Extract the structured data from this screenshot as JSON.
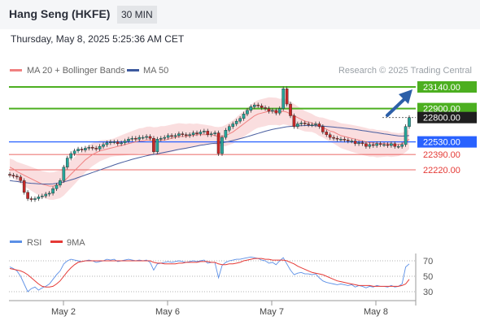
{
  "header": {
    "title": "Hang Seng (HKFE)",
    "timeframe": "30 MIN"
  },
  "datetime": "Thursday, May 8, 2025 5:25:36 AM CET",
  "legend": {
    "ma20": "MA 20 + Bollinger Bands",
    "ma50": "MA 50",
    "rsi": "RSI",
    "ma9": "9MA"
  },
  "watermark": "Research © 2025 Trading Central",
  "colors": {
    "resistance": "#4caf20",
    "pivot": "#2962ff",
    "support": "#e53935",
    "ma20": "#f08080",
    "ma50": "#4a5fa0",
    "band": "#fadadb",
    "up": "#26a69a",
    "down": "#c62828",
    "rsi": "#5b8fe6",
    "rsi_ma": "#e53935"
  },
  "chart_data": [
    {
      "type": "candlestick",
      "levels": [
        {
          "value": 23140.0,
          "label": "23140.00",
          "kind": "resistance"
        },
        {
          "value": 22900.0,
          "label": "22900.00",
          "kind": "resistance"
        },
        {
          "value": 22800.0,
          "label": "22800.00",
          "kind": "last"
        },
        {
          "value": 22530.0,
          "label": "22530.00",
          "kind": "pivot"
        },
        {
          "value": 22390.0,
          "label": "22390.00",
          "kind": "support"
        },
        {
          "value": 22220.0,
          "label": "22220.00",
          "kind": "support"
        }
      ],
      "x_ticks": [
        "May 2",
        "May 6",
        "May 7",
        "May 8"
      ],
      "y_range": [
        21700,
        23250
      ],
      "close": [
        22160,
        22150,
        22140,
        22100,
        21970,
        21900,
        21890,
        21900,
        21920,
        21930,
        21950,
        21960,
        22010,
        22050,
        22100,
        22250,
        22350,
        22400,
        22430,
        22450,
        22440,
        22460,
        22470,
        22460,
        22450,
        22480,
        22500,
        22520,
        22530,
        22530,
        22510,
        22520,
        22540,
        22560,
        22570,
        22560,
        22580,
        22580,
        22590,
        22570,
        22420,
        22560,
        22570,
        22580,
        22600,
        22590,
        22600,
        22620,
        22610,
        22600,
        22610,
        22630,
        22620,
        22640,
        22650,
        22610,
        22620,
        22630,
        22400,
        22580,
        22660,
        22700,
        22730,
        22760,
        22790,
        22840,
        22880,
        22920,
        22940,
        22930,
        22910,
        22900,
        22870,
        22880,
        22850,
        22900,
        23120,
        22950,
        22820,
        22700,
        22730,
        22740,
        22730,
        22720,
        22720,
        22730,
        22700,
        22640,
        22610,
        22580,
        22570,
        22560,
        22560,
        22550,
        22540,
        22540,
        22510,
        22520,
        22510,
        22480,
        22500,
        22490,
        22510,
        22500,
        22500,
        22490,
        22510,
        22480,
        22480,
        22500,
        22700,
        22800
      ],
      "ma20": [
        22250,
        22230,
        22200,
        22180,
        22160,
        22140,
        22120,
        22100,
        22080,
        22060,
        22050,
        22040,
        22040,
        22050,
        22060,
        22090,
        22130,
        22170,
        22210,
        22250,
        22290,
        22330,
        22360,
        22390,
        22410,
        22430,
        22440,
        22450,
        22460,
        22470,
        22480,
        22490,
        22500,
        22510,
        22520,
        22530,
        22540,
        22540,
        22550,
        22550,
        22540,
        22540,
        22550,
        22550,
        22560,
        22570,
        22580,
        22590,
        22590,
        22590,
        22600,
        22600,
        22610,
        22610,
        22610,
        22610,
        22610,
        22600,
        22590,
        22590,
        22600,
        22620,
        22640,
        22670,
        22700,
        22730,
        22760,
        22790,
        22820,
        22840,
        22850,
        22860,
        22870,
        22870,
        22870,
        22860,
        22870,
        22860,
        22840,
        22820,
        22800,
        22780,
        22760,
        22750,
        22740,
        22720,
        22700,
        22690,
        22670,
        22650,
        22640,
        22620,
        22600,
        22590,
        22580,
        22570,
        22560,
        22550,
        22540,
        22530,
        22520,
        22520,
        22510,
        22510,
        22510,
        22510,
        22500,
        22500,
        22500,
        22510,
        22530,
        22560
      ],
      "ma50": [
        22100,
        22095,
        22090,
        22085,
        22080,
        22075,
        22070,
        22068,
        22065,
        22063,
        22062,
        22062,
        22065,
        22070,
        22078,
        22086,
        22096,
        22108,
        22120,
        22134,
        22148,
        22162,
        22176,
        22190,
        22204,
        22218,
        22232,
        22246,
        22260,
        22274,
        22288,
        22300,
        22312,
        22324,
        22336,
        22346,
        22356,
        22366,
        22376,
        22384,
        22390,
        22398,
        22406,
        22414,
        22422,
        22430,
        22438,
        22446,
        22454,
        22460,
        22468,
        22476,
        22484,
        22492,
        22498,
        22504,
        22510,
        22514,
        22516,
        22520,
        22528,
        22536,
        22546,
        22556,
        22566,
        22576,
        22588,
        22600,
        22612,
        22624,
        22636,
        22648,
        22658,
        22668,
        22676,
        22684,
        22692,
        22698,
        22702,
        22706,
        22708,
        22710,
        22712,
        22712,
        22712,
        22710,
        22708,
        22706,
        22702,
        22698,
        22694,
        22690,
        22686,
        22682,
        22678,
        22674,
        22668,
        22662,
        22656,
        22650,
        22644,
        22638,
        22632,
        22626,
        22620,
        22614,
        22608,
        22602,
        22596,
        22594,
        22596,
        22600
      ]
    },
    {
      "type": "line",
      "y_ticks": [
        70,
        50,
        30
      ],
      "y_range": [
        20,
        80
      ],
      "rsi": [
        62,
        60,
        57,
        50,
        40,
        30,
        34,
        36,
        32,
        35,
        37,
        40,
        46,
        52,
        57,
        66,
        70,
        72,
        71,
        70,
        69,
        70,
        71,
        70,
        68,
        69,
        70,
        72,
        71,
        72,
        69,
        70,
        71,
        72,
        71,
        70,
        71,
        70,
        71,
        68,
        58,
        66,
        67,
        68,
        69,
        68,
        69,
        70,
        69,
        68,
        69,
        70,
        69,
        70,
        71,
        67,
        68,
        68,
        48,
        64,
        68,
        70,
        71,
        72,
        72,
        73,
        74,
        75,
        74,
        73,
        71,
        70,
        67,
        68,
        65,
        70,
        74,
        66,
        58,
        52,
        54,
        55,
        53,
        53,
        52,
        53,
        48,
        44,
        42,
        41,
        40,
        39,
        40,
        39,
        38,
        39,
        36,
        38,
        37,
        35,
        37,
        36,
        38,
        37,
        37,
        36,
        38,
        36,
        37,
        40,
        62,
        66
      ],
      "ma9": [
        60,
        59,
        58,
        57,
        55,
        52,
        48,
        44,
        40,
        37,
        36,
        36,
        37,
        40,
        44,
        50,
        56,
        61,
        65,
        68,
        69,
        70,
        70,
        70,
        70,
        70,
        70,
        70,
        70,
        70,
        70,
        70,
        70,
        70,
        70,
        70,
        70,
        70,
        70,
        70,
        68,
        67,
        67,
        66,
        66,
        66,
        66,
        67,
        67,
        68,
        68,
        68,
        68,
        69,
        69,
        69,
        68,
        68,
        66,
        65,
        65,
        66,
        66,
        67,
        68,
        70,
        71,
        72,
        73,
        73,
        73,
        72,
        72,
        71,
        71,
        71,
        71,
        70,
        68,
        66,
        63,
        61,
        59,
        57,
        55,
        54,
        53,
        52,
        50,
        48,
        46,
        44,
        43,
        42,
        41,
        40,
        39,
        38,
        38,
        38,
        38,
        37,
        37,
        37,
        37,
        37,
        37,
        37,
        37,
        38,
        40,
        46
      ]
    }
  ]
}
